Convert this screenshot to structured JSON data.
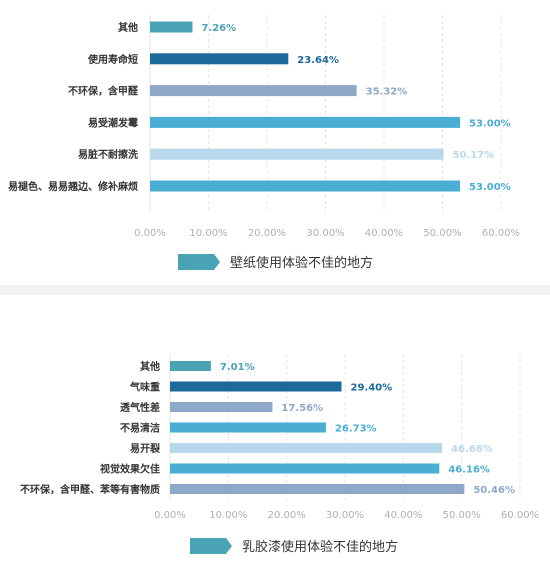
{
  "colors": {
    "teal": "#4aa3b5",
    "dark_blue": "#1b6a9a",
    "slate": "#8fa8c8",
    "blue": "#4aaed4",
    "light_blue": "#b9d8ec",
    "tick_text": "#b0b0b0",
    "label_text": "#333333",
    "legend_patch": "#4aa3b5"
  },
  "chart_data": [
    {
      "type": "bar",
      "orientation": "horizontal",
      "categories": [
        "其他",
        "使用寿命短",
        "不环保，含甲醛",
        "易受潮发霉",
        "易脏不耐擦洗",
        "易褪色、易易翘边、修补麻烦"
      ],
      "values": [
        7.26,
        23.64,
        35.32,
        53.0,
        50.17,
        53.0
      ],
      "value_labels": [
        "7.26%",
        "23.64%",
        "35.32%",
        "53.00%",
        "50.17%",
        "53.00%"
      ],
      "bar_colors": [
        "#4aa3b5",
        "#1b6a9a",
        "#8fa8c8",
        "#4aaed4",
        "#b9d8ec",
        "#4aaed4"
      ],
      "label_colors": [
        "#4aa3b5",
        "#1b6a9a",
        "#8fa8c8",
        "#4aaed4",
        "#b9d8ec",
        "#4aaed4"
      ],
      "xlim": [
        0,
        60
      ],
      "xticks": [
        "0.00%",
        "10.00%",
        "20.00%",
        "30.00%",
        "40.00%",
        "50.00%",
        "60.00%"
      ],
      "legend": "壁纸使用体验不佳的地方",
      "grid": true
    },
    {
      "type": "bar",
      "orientation": "horizontal",
      "categories": [
        "其他",
        "气味重",
        "透气性差",
        "不易清洁",
        "易开裂",
        "视觉效果欠佳",
        "不环保，含甲醛、苯等有害物质"
      ],
      "values": [
        7.01,
        29.4,
        17.56,
        26.73,
        46.66,
        46.16,
        50.46
      ],
      "value_labels": [
        "7.01%",
        "29.40%",
        "17.56%",
        "26.73%",
        "46.66%",
        "46.16%",
        "50.46%"
      ],
      "bar_colors": [
        "#4aa3b5",
        "#1b6a9a",
        "#8fa8c8",
        "#4aaed4",
        "#b9d8ec",
        "#4aaed4",
        "#8fa8c8"
      ],
      "label_colors": [
        "#4aa3b5",
        "#1b6a9a",
        "#8fa8c8",
        "#4aaed4",
        "#b9d8ec",
        "#4aaed4",
        "#8fa8c8"
      ],
      "xlim": [
        0,
        60
      ],
      "xticks": [
        "0.00%",
        "10.00%",
        "20.00%",
        "30.00%",
        "40.00%",
        "50.00%",
        "60.00%"
      ],
      "legend": "乳胶漆使用体验不佳的地方",
      "grid": true
    }
  ]
}
